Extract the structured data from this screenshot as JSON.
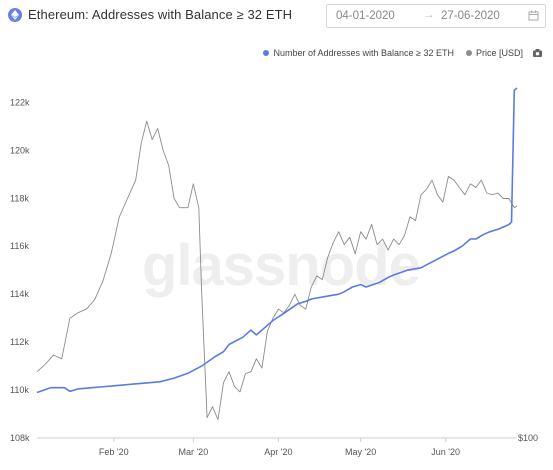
{
  "header": {
    "title": "Ethereum: Addresses with Balance ≥ 32 ETH",
    "date_start": "04-01-2020",
    "date_sep": "→",
    "date_end": "27-06-2020"
  },
  "watermark": "glassnode",
  "colors": {
    "addresses": "#5b7be0",
    "price": "#8c8c8c",
    "eth_icon": "#6b7ee8"
  },
  "icons": {
    "title": "ethereum-icon",
    "date": "calendar-icon",
    "export": "camera-icon"
  },
  "chart_data": {
    "type": "line",
    "legend_position": "top-right",
    "grid": false,
    "title": "Ethereum: Addresses with Balance ≥ 32 ETH",
    "x_ticks": [
      "Feb '20",
      "Mar '20",
      "Apr '20",
      "May '20",
      "Jun '20"
    ],
    "x_tick_days": [
      28,
      57,
      88,
      118,
      149
    ],
    "x_range_days": [
      0,
      175
    ],
    "y_ticks": [
      "108k",
      "110k",
      "112k",
      "114k",
      "116k",
      "118k",
      "120k",
      "122k"
    ],
    "y_tick_values": [
      108000,
      110000,
      112000,
      114000,
      116000,
      118000,
      120000,
      122000
    ],
    "ylim": [
      108000,
      122600
    ],
    "y2_tick": "$100",
    "y2_value": 100,
    "price_range": [
      100,
      290
    ],
    "series": [
      {
        "name": "Number of Addresses with Balance ≥ 32 ETH",
        "axis": "left",
        "points": [
          [
            0,
            109900
          ],
          [
            5,
            110100
          ],
          [
            10,
            110100
          ],
          [
            12,
            109950
          ],
          [
            15,
            110050
          ],
          [
            20,
            110100
          ],
          [
            25,
            110150
          ],
          [
            30,
            110200
          ],
          [
            35,
            110250
          ],
          [
            40,
            110300
          ],
          [
            45,
            110350
          ],
          [
            50,
            110500
          ],
          [
            55,
            110700
          ],
          [
            60,
            111000
          ],
          [
            65,
            111400
          ],
          [
            68,
            111600
          ],
          [
            70,
            111900
          ],
          [
            75,
            112200
          ],
          [
            78,
            112500
          ],
          [
            80,
            112300
          ],
          [
            83,
            112600
          ],
          [
            86,
            112900
          ],
          [
            90,
            113200
          ],
          [
            95,
            113600
          ],
          [
            98,
            113700
          ],
          [
            100,
            113800
          ],
          [
            105,
            113900
          ],
          [
            110,
            114000
          ],
          [
            112,
            114100
          ],
          [
            115,
            114300
          ],
          [
            118,
            114400
          ],
          [
            120,
            114300
          ],
          [
            125,
            114500
          ],
          [
            128,
            114700
          ],
          [
            130,
            114800
          ],
          [
            135,
            115000
          ],
          [
            140,
            115100
          ],
          [
            145,
            115400
          ],
          [
            150,
            115700
          ],
          [
            152,
            115800
          ],
          [
            155,
            116000
          ],
          [
            158,
            116300
          ],
          [
            160,
            116300
          ],
          [
            163,
            116500
          ],
          [
            165,
            116600
          ],
          [
            168,
            116700
          ],
          [
            170,
            116800
          ],
          [
            172,
            116900
          ],
          [
            173,
            117000
          ],
          [
            174,
            122500
          ],
          [
            175,
            122600
          ]
        ]
      },
      {
        "name": "Price [USD]",
        "axis": "right",
        "points": [
          [
            0,
            136
          ],
          [
            3,
            140
          ],
          [
            6,
            145
          ],
          [
            9,
            143
          ],
          [
            12,
            165
          ],
          [
            15,
            168
          ],
          [
            18,
            170
          ],
          [
            21,
            175
          ],
          [
            24,
            185
          ],
          [
            27,
            200
          ],
          [
            30,
            220
          ],
          [
            33,
            230
          ],
          [
            36,
            240
          ],
          [
            38,
            260
          ],
          [
            40,
            272
          ],
          [
            42,
            262
          ],
          [
            44,
            268
          ],
          [
            46,
            256
          ],
          [
            48,
            248
          ],
          [
            50,
            230
          ],
          [
            52,
            225
          ],
          [
            55,
            225
          ],
          [
            57,
            238
          ],
          [
            59,
            225
          ],
          [
            60,
            180
          ],
          [
            62,
            111
          ],
          [
            64,
            117
          ],
          [
            66,
            110
          ],
          [
            68,
            130
          ],
          [
            70,
            136
          ],
          [
            72,
            128
          ],
          [
            74,
            125
          ],
          [
            76,
            135
          ],
          [
            78,
            136
          ],
          [
            80,
            143
          ],
          [
            82,
            138
          ],
          [
            84,
            158
          ],
          [
            86,
            165
          ],
          [
            88,
            170
          ],
          [
            90,
            168
          ],
          [
            92,
            172
          ],
          [
            94,
            178
          ],
          [
            96,
            172
          ],
          [
            98,
            170
          ],
          [
            100,
            182
          ],
          [
            102,
            188
          ],
          [
            104,
            186
          ],
          [
            106,
            198
          ],
          [
            108,
            206
          ],
          [
            110,
            212
          ],
          [
            112,
            205
          ],
          [
            114,
            209
          ],
          [
            116,
            200
          ],
          [
            118,
            212
          ],
          [
            120,
            208
          ],
          [
            122,
            216
          ],
          [
            124,
            205
          ],
          [
            126,
            208
          ],
          [
            128,
            202
          ],
          [
            130,
            208
          ],
          [
            132,
            205
          ],
          [
            134,
            210
          ],
          [
            136,
            220
          ],
          [
            138,
            218
          ],
          [
            140,
            232
          ],
          [
            142,
            235
          ],
          [
            144,
            240
          ],
          [
            146,
            232
          ],
          [
            148,
            228
          ],
          [
            150,
            242
          ],
          [
            152,
            240
          ],
          [
            154,
            236
          ],
          [
            156,
            232
          ],
          [
            158,
            238
          ],
          [
            160,
            236
          ],
          [
            162,
            240
          ],
          [
            164,
            233
          ],
          [
            166,
            232
          ],
          [
            168,
            233
          ],
          [
            170,
            230
          ],
          [
            172,
            230
          ],
          [
            174,
            225
          ],
          [
            175,
            226
          ]
        ]
      }
    ]
  }
}
